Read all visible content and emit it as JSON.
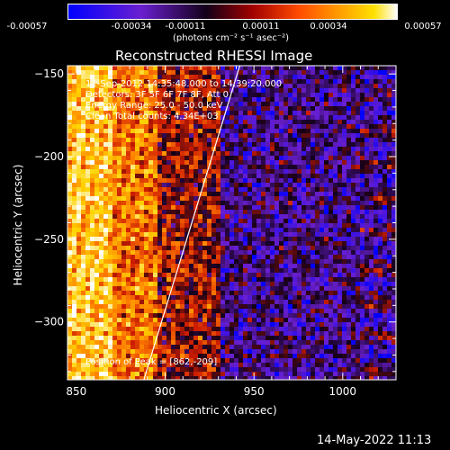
{
  "colorbar": {
    "ticks": [
      "-0.00057",
      "-0.00034",
      "-0.00011",
      "0.00011",
      "0.00034",
      "0.00057"
    ],
    "unit_label": "(photons cm⁻² s⁻¹ asec⁻²)",
    "range": [
      -0.00057,
      0.00057
    ]
  },
  "annotations": {
    "time": "11-Sep-2012 14:35:48.000 to 14:39:20.000",
    "detectors": "Detectors: 3F 5F 6F 7F 8F, Att 0",
    "energy": "Energy Range: 25.0 - 50.0 keV",
    "clean": "Clean    Total counts: 4.34E+03",
    "peak": "Position of Peak = [862,-209]"
  },
  "footer": {
    "timestamp": "14-May-2022 11:13"
  },
  "chart_data": {
    "type": "heatmap",
    "title": "Reconstructed RHESSI Image",
    "xlabel": "Heliocentric X (arcsec)",
    "ylabel": "Heliocentric Y (arcsec)",
    "xlim": [
      845,
      1030
    ],
    "ylim": [
      -335,
      -145
    ],
    "xticks": [
      850,
      900,
      950,
      1000
    ],
    "yticks": [
      -150,
      -200,
      -250,
      -300
    ],
    "colormap": "blue-purple-black-red-orange-yellow-white",
    "limb_line": [
      [
        888,
        -335
      ],
      [
        942,
        -145
      ]
    ],
    "peak": [
      862,
      -209
    ],
    "colorscale": [
      "#0000ff",
      "#6a1fd0",
      "#120018",
      "#cc1b00",
      "#ff7a00",
      "#ffd400",
      "#ffffff"
    ]
  }
}
